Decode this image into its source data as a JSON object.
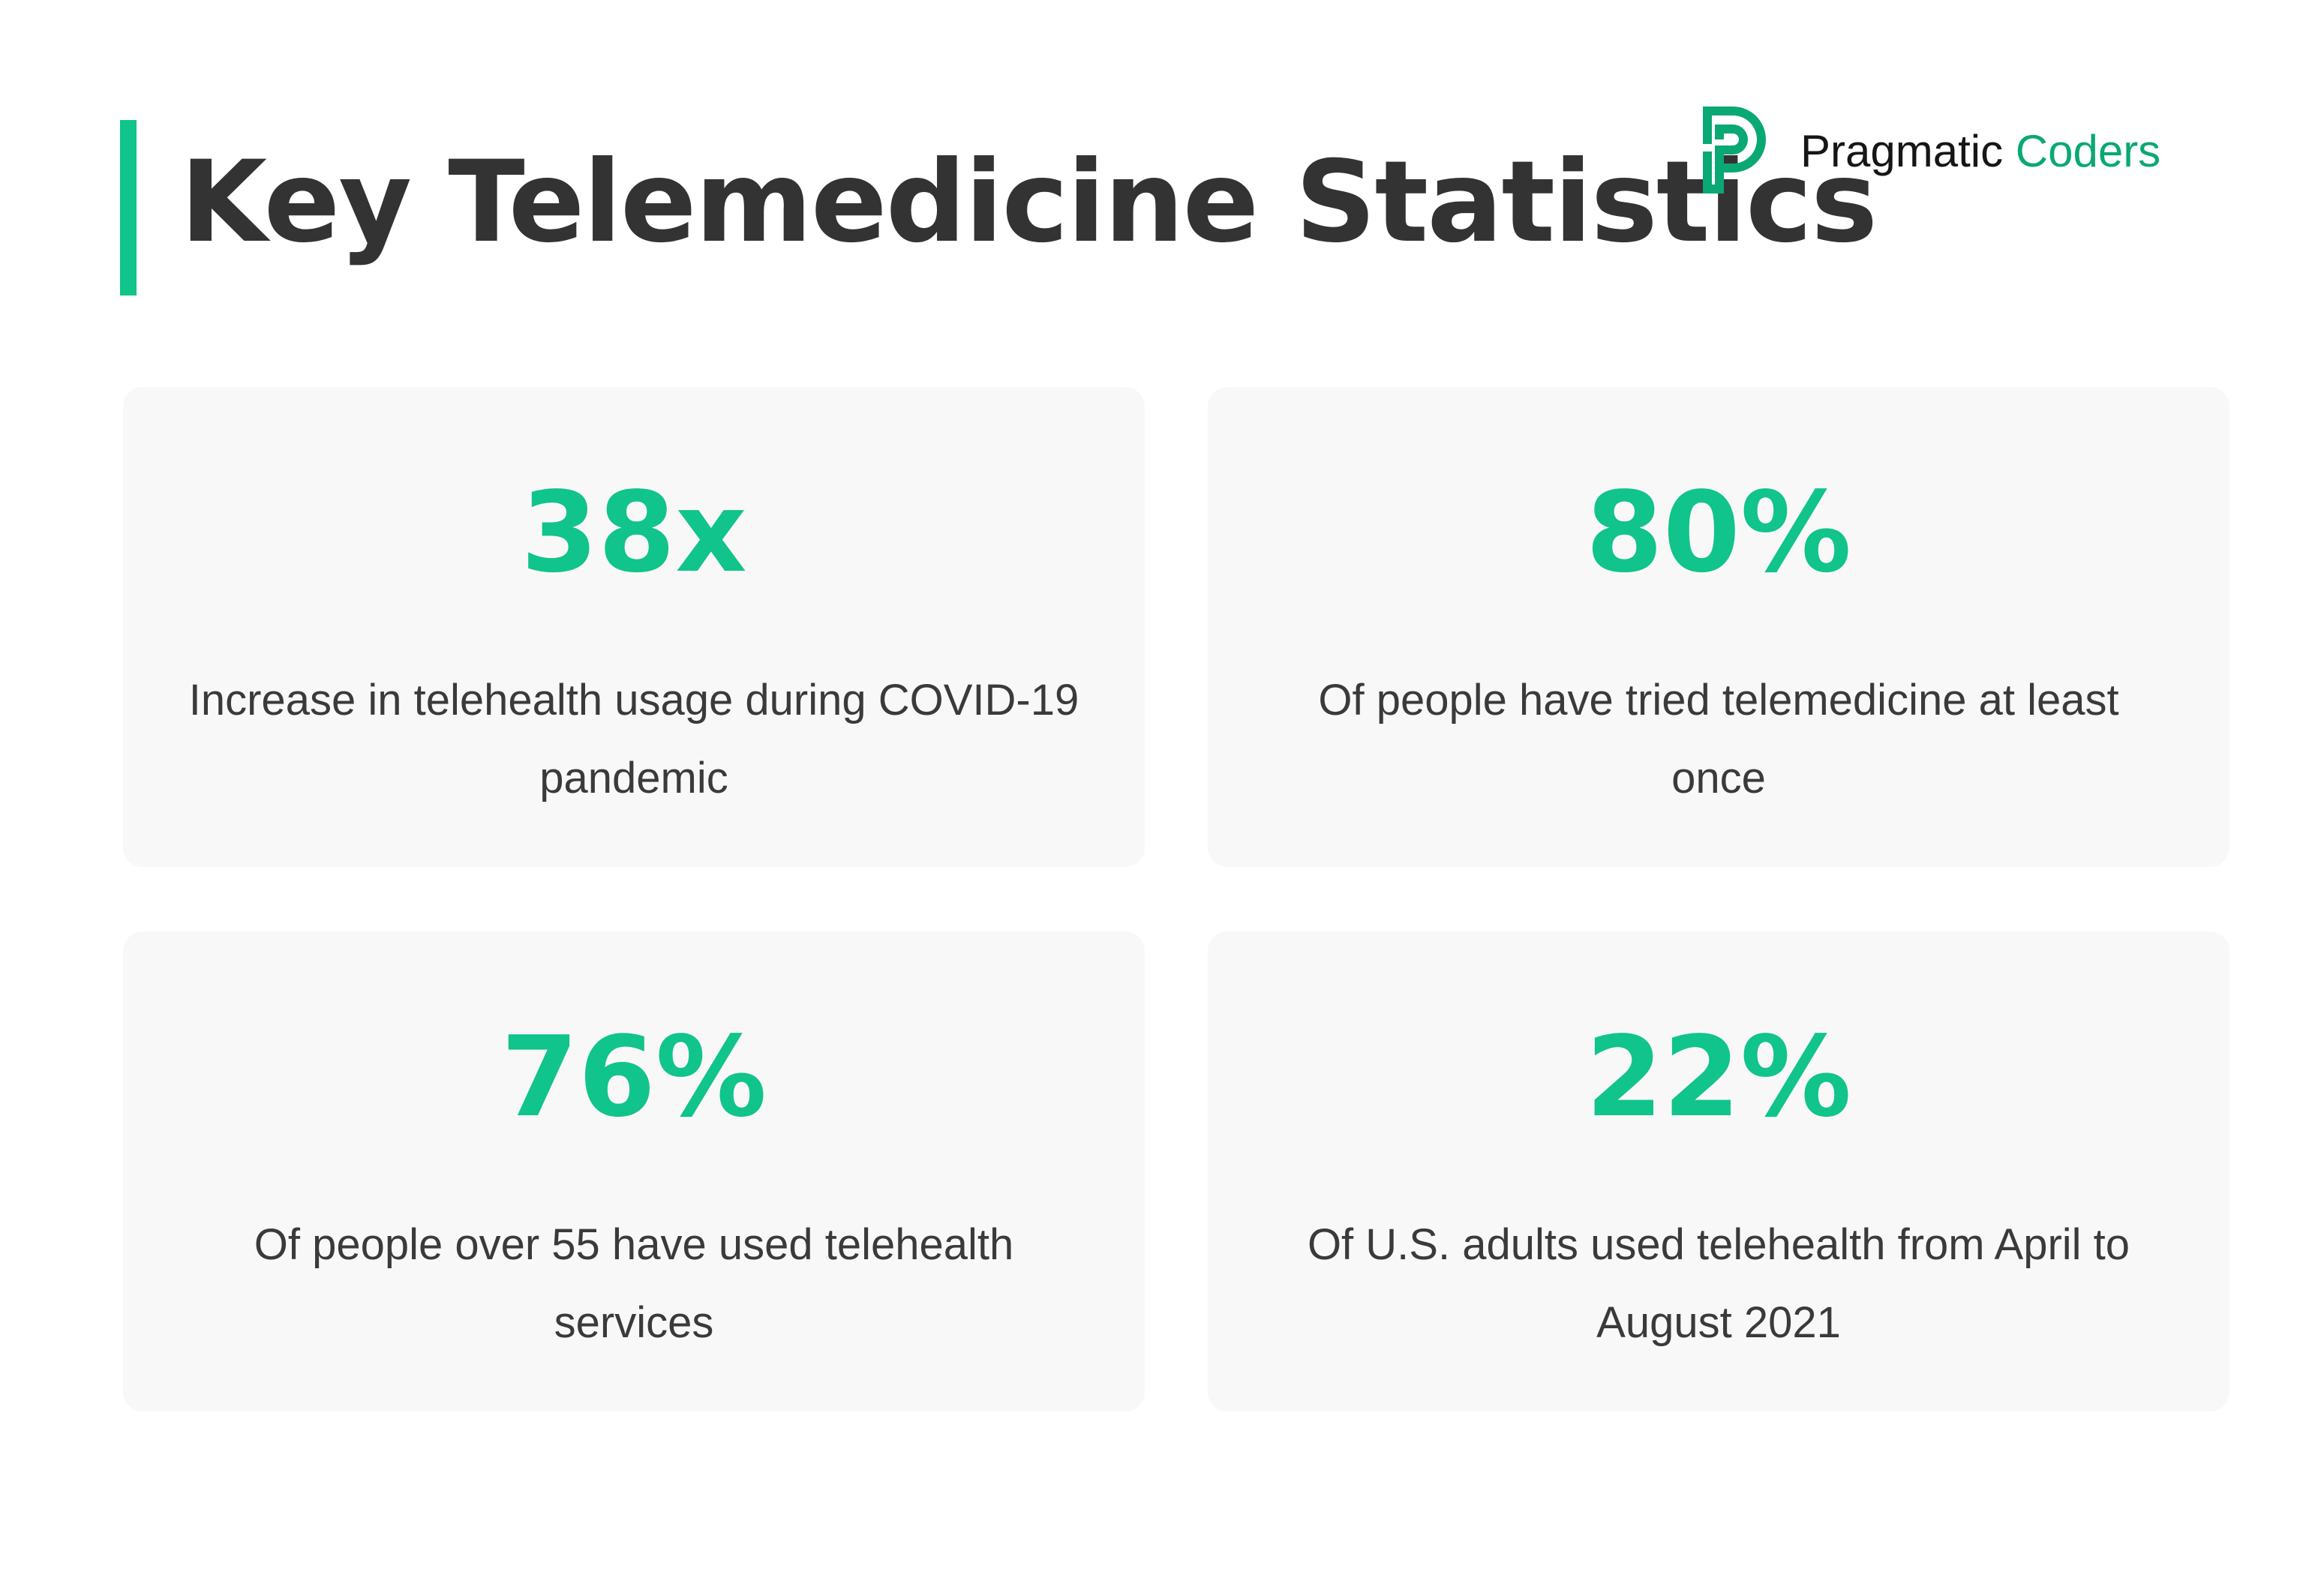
{
  "header": {
    "title": "Key Telemedicine Statistics",
    "logo": {
      "part1": "Pragmatic",
      "part2": "Coders"
    }
  },
  "colors": {
    "accent": "#10c48b",
    "logo_green": "#0aa874",
    "text": "#333333",
    "card_bg": "#f8f8f8"
  },
  "stats": [
    {
      "value": "38x",
      "description": "Increase in telehealth usage during COVID-19 pandemic"
    },
    {
      "value": "80%",
      "description": "Of people have tried telemedicine at least once"
    },
    {
      "value": "76%",
      "description": "Of people over 55 have used telehealth services"
    },
    {
      "value": "22%",
      "description": "Of U.S. adults used telehealth from April to August 2021"
    }
  ]
}
